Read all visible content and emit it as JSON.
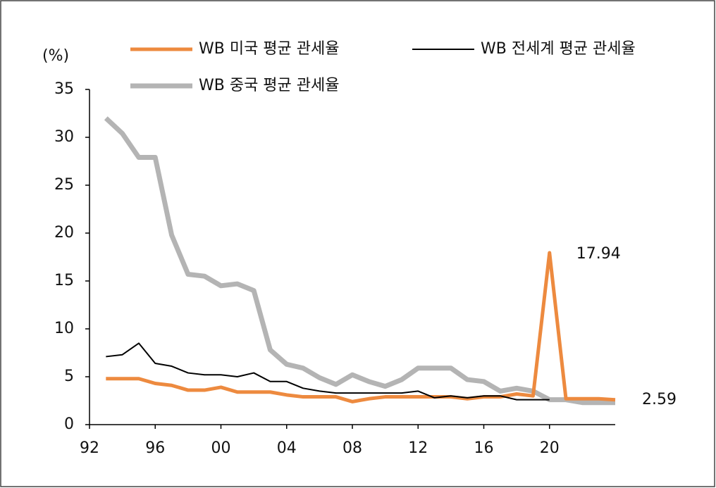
{
  "chart_data": {
    "type": "line",
    "y_label": "(%)",
    "x": [
      1993,
      1994,
      1995,
      1996,
      1997,
      1998,
      1999,
      2000,
      2001,
      2002,
      2003,
      2004,
      2005,
      2006,
      2007,
      2008,
      2009,
      2010,
      2011,
      2012,
      2013,
      2014,
      2015,
      2016,
      2017,
      2018,
      2019,
      2020,
      2021,
      2022,
      2023,
      2024
    ],
    "series": [
      {
        "name": "WB 중국 평균 관세율",
        "color": "#b4b4b4",
        "width": 7,
        "values": [
          32.0,
          30.4,
          27.9,
          27.9,
          19.8,
          15.7,
          15.5,
          14.5,
          14.7,
          14.0,
          7.8,
          6.3,
          5.9,
          4.9,
          4.2,
          5.2,
          4.5,
          4.0,
          4.7,
          5.9,
          5.9,
          5.9,
          4.7,
          4.5,
          3.5,
          3.8,
          3.5,
          2.6,
          2.6,
          2.3,
          2.3,
          2.3
        ]
      },
      {
        "name": "WB 미국 평균 관세율",
        "color": "#ed8a3f",
        "width": 5,
        "values": [
          4.8,
          4.8,
          4.8,
          4.3,
          4.1,
          3.6,
          3.6,
          3.9,
          3.4,
          3.4,
          3.4,
          3.1,
          2.9,
          2.9,
          2.9,
          2.4,
          2.7,
          2.9,
          2.9,
          2.9,
          2.9,
          2.9,
          2.7,
          2.9,
          2.9,
          3.2,
          3.0,
          17.94,
          2.7,
          2.7,
          2.7,
          2.59
        ],
        "value_labels": [
          null,
          null,
          null,
          null,
          null,
          null,
          null,
          null,
          null,
          null,
          null,
          null,
          null,
          null,
          null,
          null,
          null,
          null,
          null,
          null,
          null,
          null,
          null,
          null,
          null,
          null,
          null,
          "17.94",
          null,
          null,
          null,
          "2.59"
        ]
      },
      {
        "name": "WB 전세계 평균 관세율",
        "color": "#000000",
        "width": 2,
        "values": [
          7.1,
          7.3,
          8.5,
          6.4,
          6.1,
          5.4,
          5.2,
          5.2,
          5.0,
          5.4,
          4.5,
          4.5,
          3.8,
          3.5,
          3.3,
          3.3,
          3.3,
          3.3,
          3.3,
          3.5,
          2.8,
          3.0,
          2.8,
          3.0,
          3.0,
          2.6,
          2.6,
          2.6,
          null,
          null,
          null,
          null
        ]
      }
    ],
    "xlim": [
      1992,
      2024
    ],
    "xticks": [
      {
        "value": 1992,
        "label": "92"
      },
      {
        "value": 1996,
        "label": "96"
      },
      {
        "value": 2000,
        "label": "00"
      },
      {
        "value": 2004,
        "label": "04"
      },
      {
        "value": 2008,
        "label": "08"
      },
      {
        "value": 2012,
        "label": "12"
      },
      {
        "value": 2016,
        "label": "16"
      },
      {
        "value": 2020,
        "label": "20"
      }
    ],
    "ylim": [
      0,
      35
    ],
    "yticks": [
      0,
      5,
      10,
      15,
      20,
      25,
      30,
      35
    ],
    "grid": false
  }
}
